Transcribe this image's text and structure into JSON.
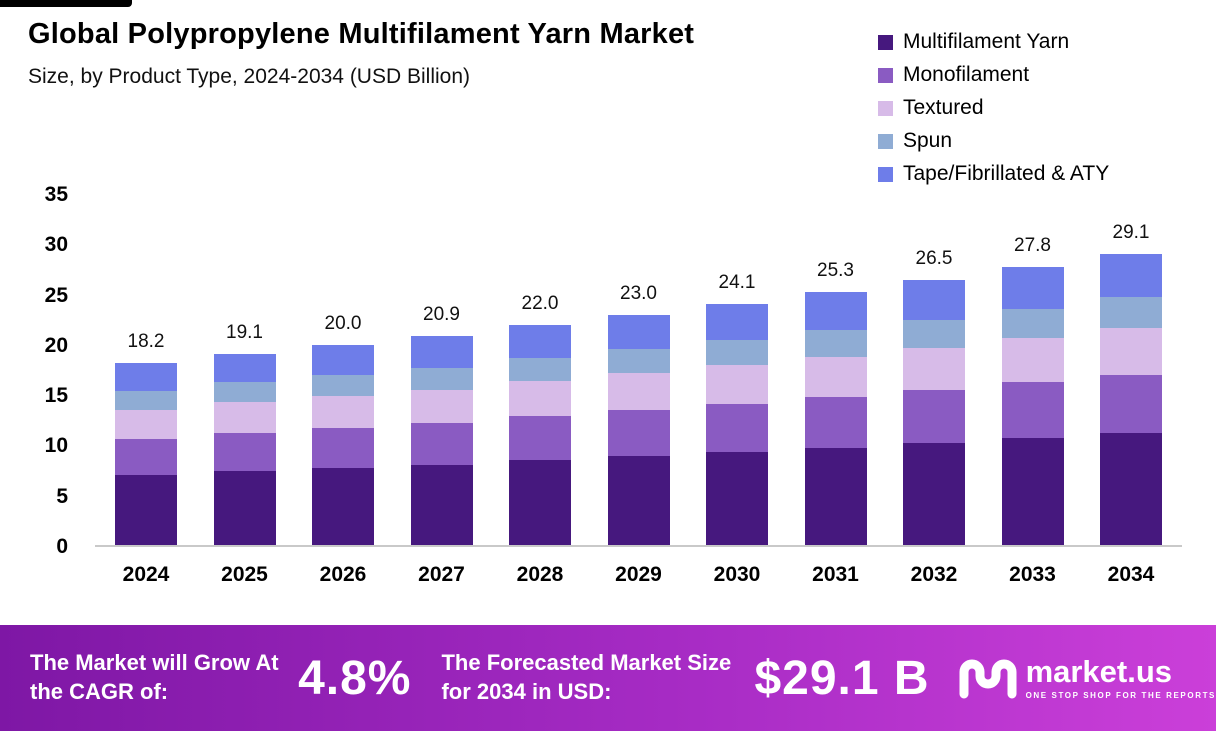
{
  "header": {
    "title": "Global Polypropylene Multifilament Yarn Market",
    "subtitle": "Size, by Product Type, 2024-2034 (USD Billion)"
  },
  "legend": [
    {
      "label": "Multifilament Yarn",
      "color": "#46187e"
    },
    {
      "label": "Monofilament",
      "color": "#8a5bc2"
    },
    {
      "label": "Textured",
      "color": "#d7bbe8"
    },
    {
      "label": "Spun",
      "color": "#8facd4"
    },
    {
      "label": "Tape/Fibrillated & ATY",
      "color": "#6e7de9"
    }
  ],
  "chart_data": {
    "type": "bar",
    "stacked": true,
    "title": "Global Polypropylene Multifilament Yarn Market Size, by Product Type, 2024-2034 (USD Billion)",
    "xlabel": "",
    "ylabel": "",
    "ylim": [
      0,
      35
    ],
    "y_ticks": [
      0,
      5,
      10,
      15,
      20,
      25,
      30,
      35
    ],
    "grid": false,
    "legend_position": "top-right",
    "categories": [
      "2024",
      "2025",
      "2026",
      "2027",
      "2028",
      "2029",
      "2030",
      "2031",
      "2032",
      "2033",
      "2034"
    ],
    "totals": [
      18.2,
      19.1,
      20.0,
      20.9,
      22.0,
      23.0,
      24.1,
      25.3,
      26.5,
      27.8,
      29.1
    ],
    "series": [
      {
        "name": "Multifilament Yarn",
        "color": "#46187e",
        "values": [
          7.0,
          7.4,
          7.7,
          8.0,
          8.5,
          8.9,
          9.3,
          9.7,
          10.2,
          10.7,
          11.2
        ]
      },
      {
        "name": "Monofilament",
        "color": "#8a5bc2",
        "values": [
          3.6,
          3.8,
          4.0,
          4.2,
          4.4,
          4.6,
          4.8,
          5.1,
          5.3,
          5.6,
          5.8
        ]
      },
      {
        "name": "Textured",
        "color": "#d7bbe8",
        "values": [
          2.9,
          3.1,
          3.2,
          3.3,
          3.5,
          3.7,
          3.9,
          4.0,
          4.2,
          4.4,
          4.7
        ]
      },
      {
        "name": "Spun",
        "color": "#8facd4",
        "values": [
          1.9,
          2.0,
          2.1,
          2.2,
          2.3,
          2.4,
          2.5,
          2.7,
          2.8,
          2.9,
          3.1
        ]
      },
      {
        "name": "Tape/Fibrillated & ATY",
        "color": "#6e7de9",
        "values": [
          2.8,
          2.8,
          3.0,
          3.2,
          3.3,
          3.4,
          3.6,
          3.8,
          4.0,
          4.2,
          4.3
        ]
      }
    ]
  },
  "footer": {
    "cagr_label": "The Market will Grow At the CAGR of:",
    "cagr_value": "4.8%",
    "forecast_label": "The Forecasted Market Size for 2034 in USD:",
    "forecast_value": "$29.1 B",
    "brand": "market.us",
    "brand_tagline": "ONE STOP SHOP FOR THE REPORTS"
  }
}
